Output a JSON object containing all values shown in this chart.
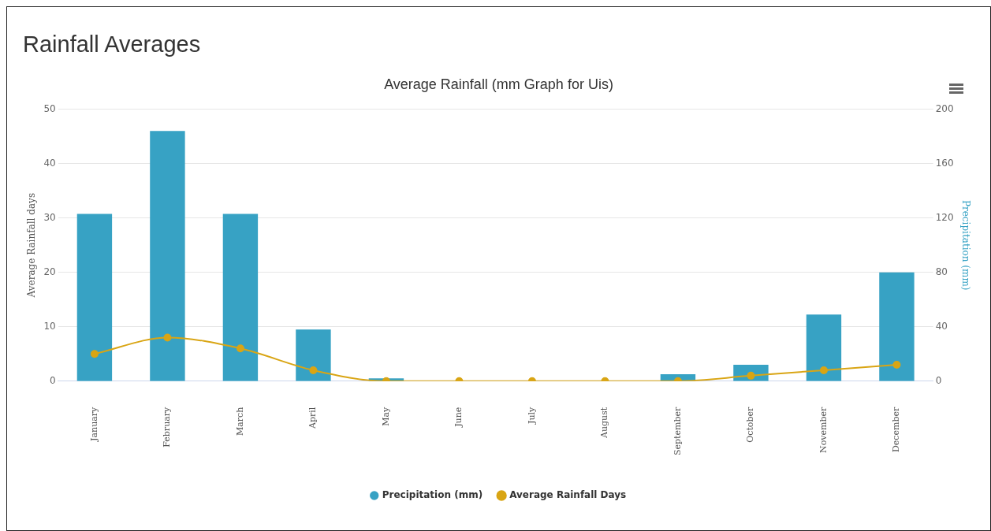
{
  "chart_data": {
    "type": "bar",
    "title": "Rainfall Averages",
    "subtitle": "Average Rainfall (mm Graph for Uis)",
    "ylabel": "Average Rainfall days",
    "y2label": "Precipitation (mm)",
    "categories": [
      "January",
      "February",
      "March",
      "April",
      "May",
      "June",
      "July",
      "August",
      "September",
      "October",
      "November",
      "December"
    ],
    "series": [
      {
        "name": "Precipitation (mm)",
        "axis": "y2",
        "color": "#37a2c4",
        "values": [
          123,
          184,
          123,
          38,
          2,
          0,
          0,
          0,
          5,
          12,
          49,
          80
        ]
      },
      {
        "name": "Average Rainfall Days",
        "type": "line",
        "axis": "y",
        "color": "#d9a514",
        "values": [
          5,
          8,
          6,
          2,
          0,
          0,
          0,
          0,
          0,
          1,
          2,
          3
        ]
      }
    ],
    "ylim": [
      0,
      50
    ],
    "yticks": [
      0,
      10,
      20,
      30,
      40,
      50
    ],
    "y2lim": [
      0,
      200
    ],
    "y2ticks": [
      0,
      40,
      80,
      120,
      160,
      200
    ],
    "grid": "y",
    "legend": "bottom",
    "marker": "circle"
  }
}
